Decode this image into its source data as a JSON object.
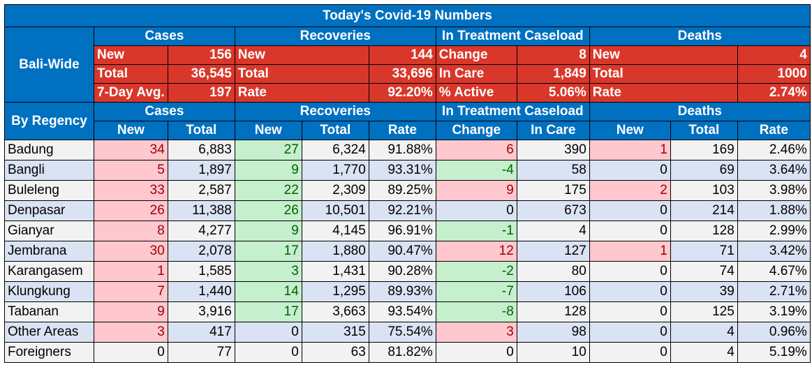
{
  "title": "Today's Covid-19 Numbers",
  "bali": {
    "label": "Bali-Wide",
    "headers": [
      "Cases",
      "Recoveries",
      "In Treatment Caseload",
      "Deaths"
    ],
    "rows": [
      [
        "New",
        "156",
        "New",
        "144",
        "Change",
        "8",
        "New",
        "4"
      ],
      [
        "Total",
        "36,545",
        "Total",
        "33,696",
        "In Care",
        "1,849",
        "Total",
        "1000"
      ],
      [
        "7-Day Avg.",
        "197",
        "Rate",
        "92.20%",
        "% Active",
        "5.06%",
        "Rate",
        "2.74%"
      ]
    ]
  },
  "regency": {
    "label": "By Regency",
    "groups": [
      "Cases",
      "Recoveries",
      "In Treatment Caseload",
      "Deaths"
    ],
    "columns": [
      "New",
      "Total",
      "New",
      "Total",
      "Rate",
      "Change",
      "In Care",
      "New",
      "Total",
      "Rate"
    ],
    "rows": [
      [
        "Badung",
        "34",
        "6,883",
        "27",
        "6,324",
        "91.88%",
        "6",
        "390",
        "1",
        "169",
        "2.46%"
      ],
      [
        "Bangli",
        "5",
        "1,897",
        "9",
        "1,770",
        "93.31%",
        "-4",
        "58",
        "0",
        "69",
        "3.64%"
      ],
      [
        "Buleleng",
        "33",
        "2,587",
        "22",
        "2,309",
        "89.25%",
        "9",
        "175",
        "2",
        "103",
        "3.98%"
      ],
      [
        "Denpasar",
        "26",
        "11,388",
        "26",
        "10,501",
        "92.21%",
        "0",
        "673",
        "0",
        "214",
        "1.88%"
      ],
      [
        "Gianyar",
        "8",
        "4,277",
        "9",
        "4,145",
        "96.91%",
        "-1",
        "4",
        "0",
        "128",
        "2.99%"
      ],
      [
        "Jembrana",
        "30",
        "2,078",
        "17",
        "1,880",
        "90.47%",
        "12",
        "127",
        "1",
        "71",
        "3.42%"
      ],
      [
        "Karangasem",
        "1",
        "1,585",
        "3",
        "1,431",
        "90.28%",
        "-2",
        "80",
        "0",
        "74",
        "4.67%"
      ],
      [
        "Klungkung",
        "7",
        "1,440",
        "14",
        "1,295",
        "89.93%",
        "-7",
        "106",
        "0",
        "39",
        "2.71%"
      ],
      [
        "Tabanan",
        "9",
        "3,916",
        "17",
        "3,663",
        "93.54%",
        "-8",
        "128",
        "0",
        "125",
        "3.19%"
      ],
      [
        "Other Areas",
        "3",
        "417",
        "0",
        "315",
        "75.54%",
        "3",
        "98",
        "0",
        "4",
        "0.96%"
      ],
      [
        "Foreigners",
        "0",
        "77",
        "0",
        "63",
        "81.82%",
        "0",
        "10",
        "0",
        "4",
        "5.19%"
      ]
    ]
  },
  "colors": {
    "header_blue": "#0070c0",
    "bali_red": "#d9372a",
    "increase_pink": "#ffc7ce",
    "decrease_green": "#c6efce",
    "row_gray": "#f2f2f2",
    "row_blue": "#dae3f3"
  }
}
